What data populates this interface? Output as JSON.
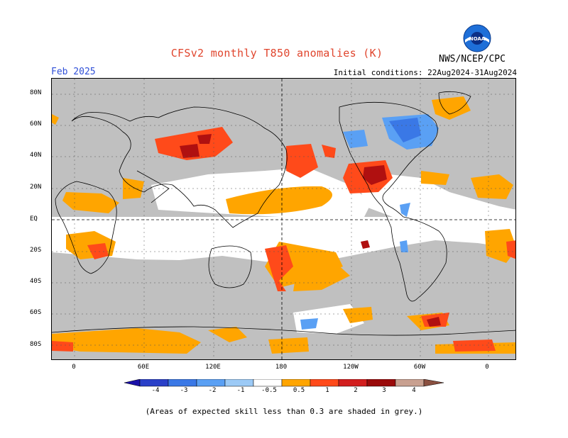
{
  "header": {
    "title": "CFSv2 monthly T850 anomalies (K)",
    "month": "Feb 2025",
    "initial_conditions": "Initial conditions: 22Aug2024-31Aug2024",
    "agency": "NWS/NCEP/CPC",
    "logo_text": "NOAA"
  },
  "map": {
    "lat_labels": [
      "80N",
      "60N",
      "40N",
      "20N",
      "EQ",
      "20S",
      "40S",
      "60S",
      "80S"
    ],
    "lon_labels": [
      "0",
      "60E",
      "120E",
      "180",
      "120W",
      "60W",
      "0"
    ]
  },
  "colorbar": {
    "labels": [
      "-4",
      "-3",
      "-2",
      "-1",
      "-0.5",
      "0.5",
      "1",
      "2",
      "3",
      "4"
    ],
    "colors": [
      "#1a10a8",
      "#2a40c8",
      "#3a78e6",
      "#5aa0f4",
      "#9ccaf6",
      "#ffffff",
      "#ffa500",
      "#ff4a1a",
      "#d21e1e",
      "#9a0a0a",
      "#c8a090",
      "#8a5040"
    ]
  },
  "note": "(Areas of expected skill less than 0.3 are shaded in grey.)"
}
